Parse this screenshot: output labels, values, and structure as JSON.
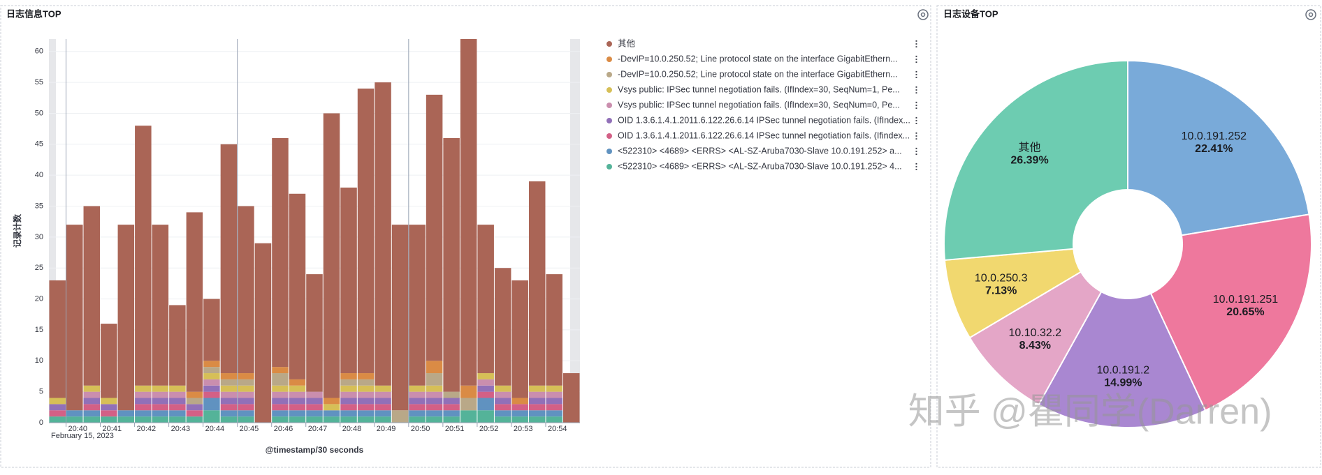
{
  "chart_data": [
    {
      "type": "bar",
      "title": "日志信息TOP",
      "y_label": "记录计数",
      "x_label": "@timestamp/30 seconds",
      "x_sublabel": "February 15, 2023",
      "categories": [
        null,
        "20:40",
        null,
        "20:41",
        null,
        "20:42",
        null,
        "20:43",
        null,
        "20:44",
        null,
        "20:45",
        null,
        "20:46",
        null,
        "20:47",
        null,
        "20:48",
        null,
        "20:49",
        null,
        "20:50",
        null,
        "20:51",
        null,
        "20:52",
        null,
        "20:53",
        null,
        "20:54",
        null
      ],
      "series": [
        {
          "name": "其他",
          "color": "#aa6556",
          "values": [
            19,
            30,
            29,
            12,
            30,
            42,
            26,
            13,
            29,
            10,
            37,
            27,
            29,
            37,
            30,
            19,
            46,
            30,
            46,
            49,
            30,
            26,
            43,
            41,
            56,
            24,
            19,
            19,
            33,
            18,
            8
          ]
        },
        {
          "name": "-DevIP=10.0.250.52; Line protocol state on the interface GigabitEthern...",
          "color": "#da8b45",
          "values": [
            0,
            0,
            0,
            0,
            0,
            0,
            0,
            0,
            1,
            1,
            1,
            1,
            0,
            1,
            1,
            0,
            1,
            1,
            1,
            0,
            0,
            0,
            2,
            0,
            2,
            0,
            0,
            1,
            0,
            0,
            0
          ]
        },
        {
          "name": "-DevIP=10.0.250.52; Line protocol state on the interface GigabitEthern...",
          "color": "#b9a888",
          "values": [
            0,
            0,
            0,
            0,
            0,
            0,
            0,
            0,
            1,
            1,
            1,
            1,
            0,
            2,
            0,
            0,
            0,
            1,
            1,
            0,
            2,
            0,
            2,
            1,
            2,
            0,
            0,
            0,
            0,
            0,
            0
          ]
        },
        {
          "name": "Vsys public: IPSec tunnel negotiation fails. (IfIndex=30, SeqNum=1, Pe...",
          "color": "#d6bf57",
          "values": [
            1,
            0,
            1,
            1,
            0,
            1,
            1,
            1,
            0,
            1,
            1,
            1,
            0,
            1,
            1,
            0,
            1,
            1,
            1,
            1,
            0,
            1,
            1,
            0,
            0,
            1,
            1,
            0,
            1,
            1,
            0
          ]
        },
        {
          "name": "Vsys public: IPSec tunnel negotiation fails. (IfIndex=30, SeqNum=0, Pe...",
          "color": "#ca8eae",
          "values": [
            0,
            0,
            1,
            0,
            0,
            1,
            1,
            1,
            0,
            1,
            1,
            1,
            0,
            1,
            1,
            1,
            0,
            1,
            1,
            1,
            0,
            1,
            1,
            0,
            0,
            1,
            1,
            0,
            1,
            1,
            0
          ]
        },
        {
          "name": "OID 1.3.6.1.4.1.2011.6.122.26.6.14 IPSec tunnel negotiation fails. (IfIndex...",
          "color": "#9170b8",
          "values": [
            1,
            0,
            1,
            1,
            0,
            1,
            1,
            1,
            1,
            1,
            1,
            1,
            0,
            1,
            1,
            1,
            0,
            1,
            1,
            1,
            0,
            1,
            1,
            1,
            0,
            1,
            1,
            0,
            1,
            1,
            0
          ]
        },
        {
          "name": "OID 1.3.6.1.4.1.2011.6.122.26.6.14 IPSec tunnel negotiation fails. (Ifindex...",
          "color": "#d36086",
          "values": [
            1,
            0,
            1,
            1,
            0,
            1,
            1,
            1,
            1,
            1,
            1,
            1,
            0,
            1,
            1,
            1,
            0,
            1,
            1,
            1,
            0,
            1,
            1,
            1,
            0,
            1,
            1,
            1,
            1,
            1,
            0
          ]
        },
        {
          "name": "<522310> <4689> <ERRS> <AL-SZ-Aruba7030-Slave 10.0.191.252> a...",
          "color": "#6092c0",
          "values": [
            0,
            1,
            1,
            0,
            1,
            1,
            1,
            1,
            0,
            2,
            1,
            1,
            0,
            1,
            1,
            1,
            1,
            1,
            1,
            1,
            0,
            1,
            1,
            1,
            0,
            2,
            1,
            1,
            1,
            1,
            0
          ]
        },
        {
          "name": "<522310> <4689> <ERRS> <AL-SZ-Aruba7030-Slave 10.0.191.252> 4...",
          "color": "#54b399",
          "values": [
            1,
            1,
            1,
            1,
            1,
            1,
            1,
            1,
            1,
            2,
            1,
            1,
            0,
            1,
            1,
            1,
            1,
            1,
            1,
            1,
            0,
            1,
            1,
            1,
            2,
            2,
            1,
            1,
            1,
            1,
            0
          ]
        }
      ],
      "ylim": [
        0,
        62
      ],
      "yticks": [
        0,
        5,
        10,
        15,
        20,
        25,
        30,
        35,
        40,
        45,
        50,
        55,
        60
      ],
      "grid": true,
      "legend": "right"
    },
    {
      "type": "pie",
      "title": "日志设备TOP",
      "categories": [
        "10.0.191.252",
        "10.0.191.251",
        "10.0.191.2",
        "10.10.32.2",
        "10.0.250.3",
        "其他"
      ],
      "values": [
        22.41,
        20.65,
        14.99,
        8.43,
        7.13,
        26.39
      ],
      "value_labels": [
        "22.41%",
        "20.65%",
        "14.99%",
        "8.43%",
        "7.13%",
        "26.39%"
      ],
      "colors": [
        "#79aad9",
        "#ee789d",
        "#a987d1",
        "#e4a6c7",
        "#f1d86f",
        "#6dccb1"
      ]
    }
  ],
  "watermark": "知乎 @瞿同学(Darren)"
}
